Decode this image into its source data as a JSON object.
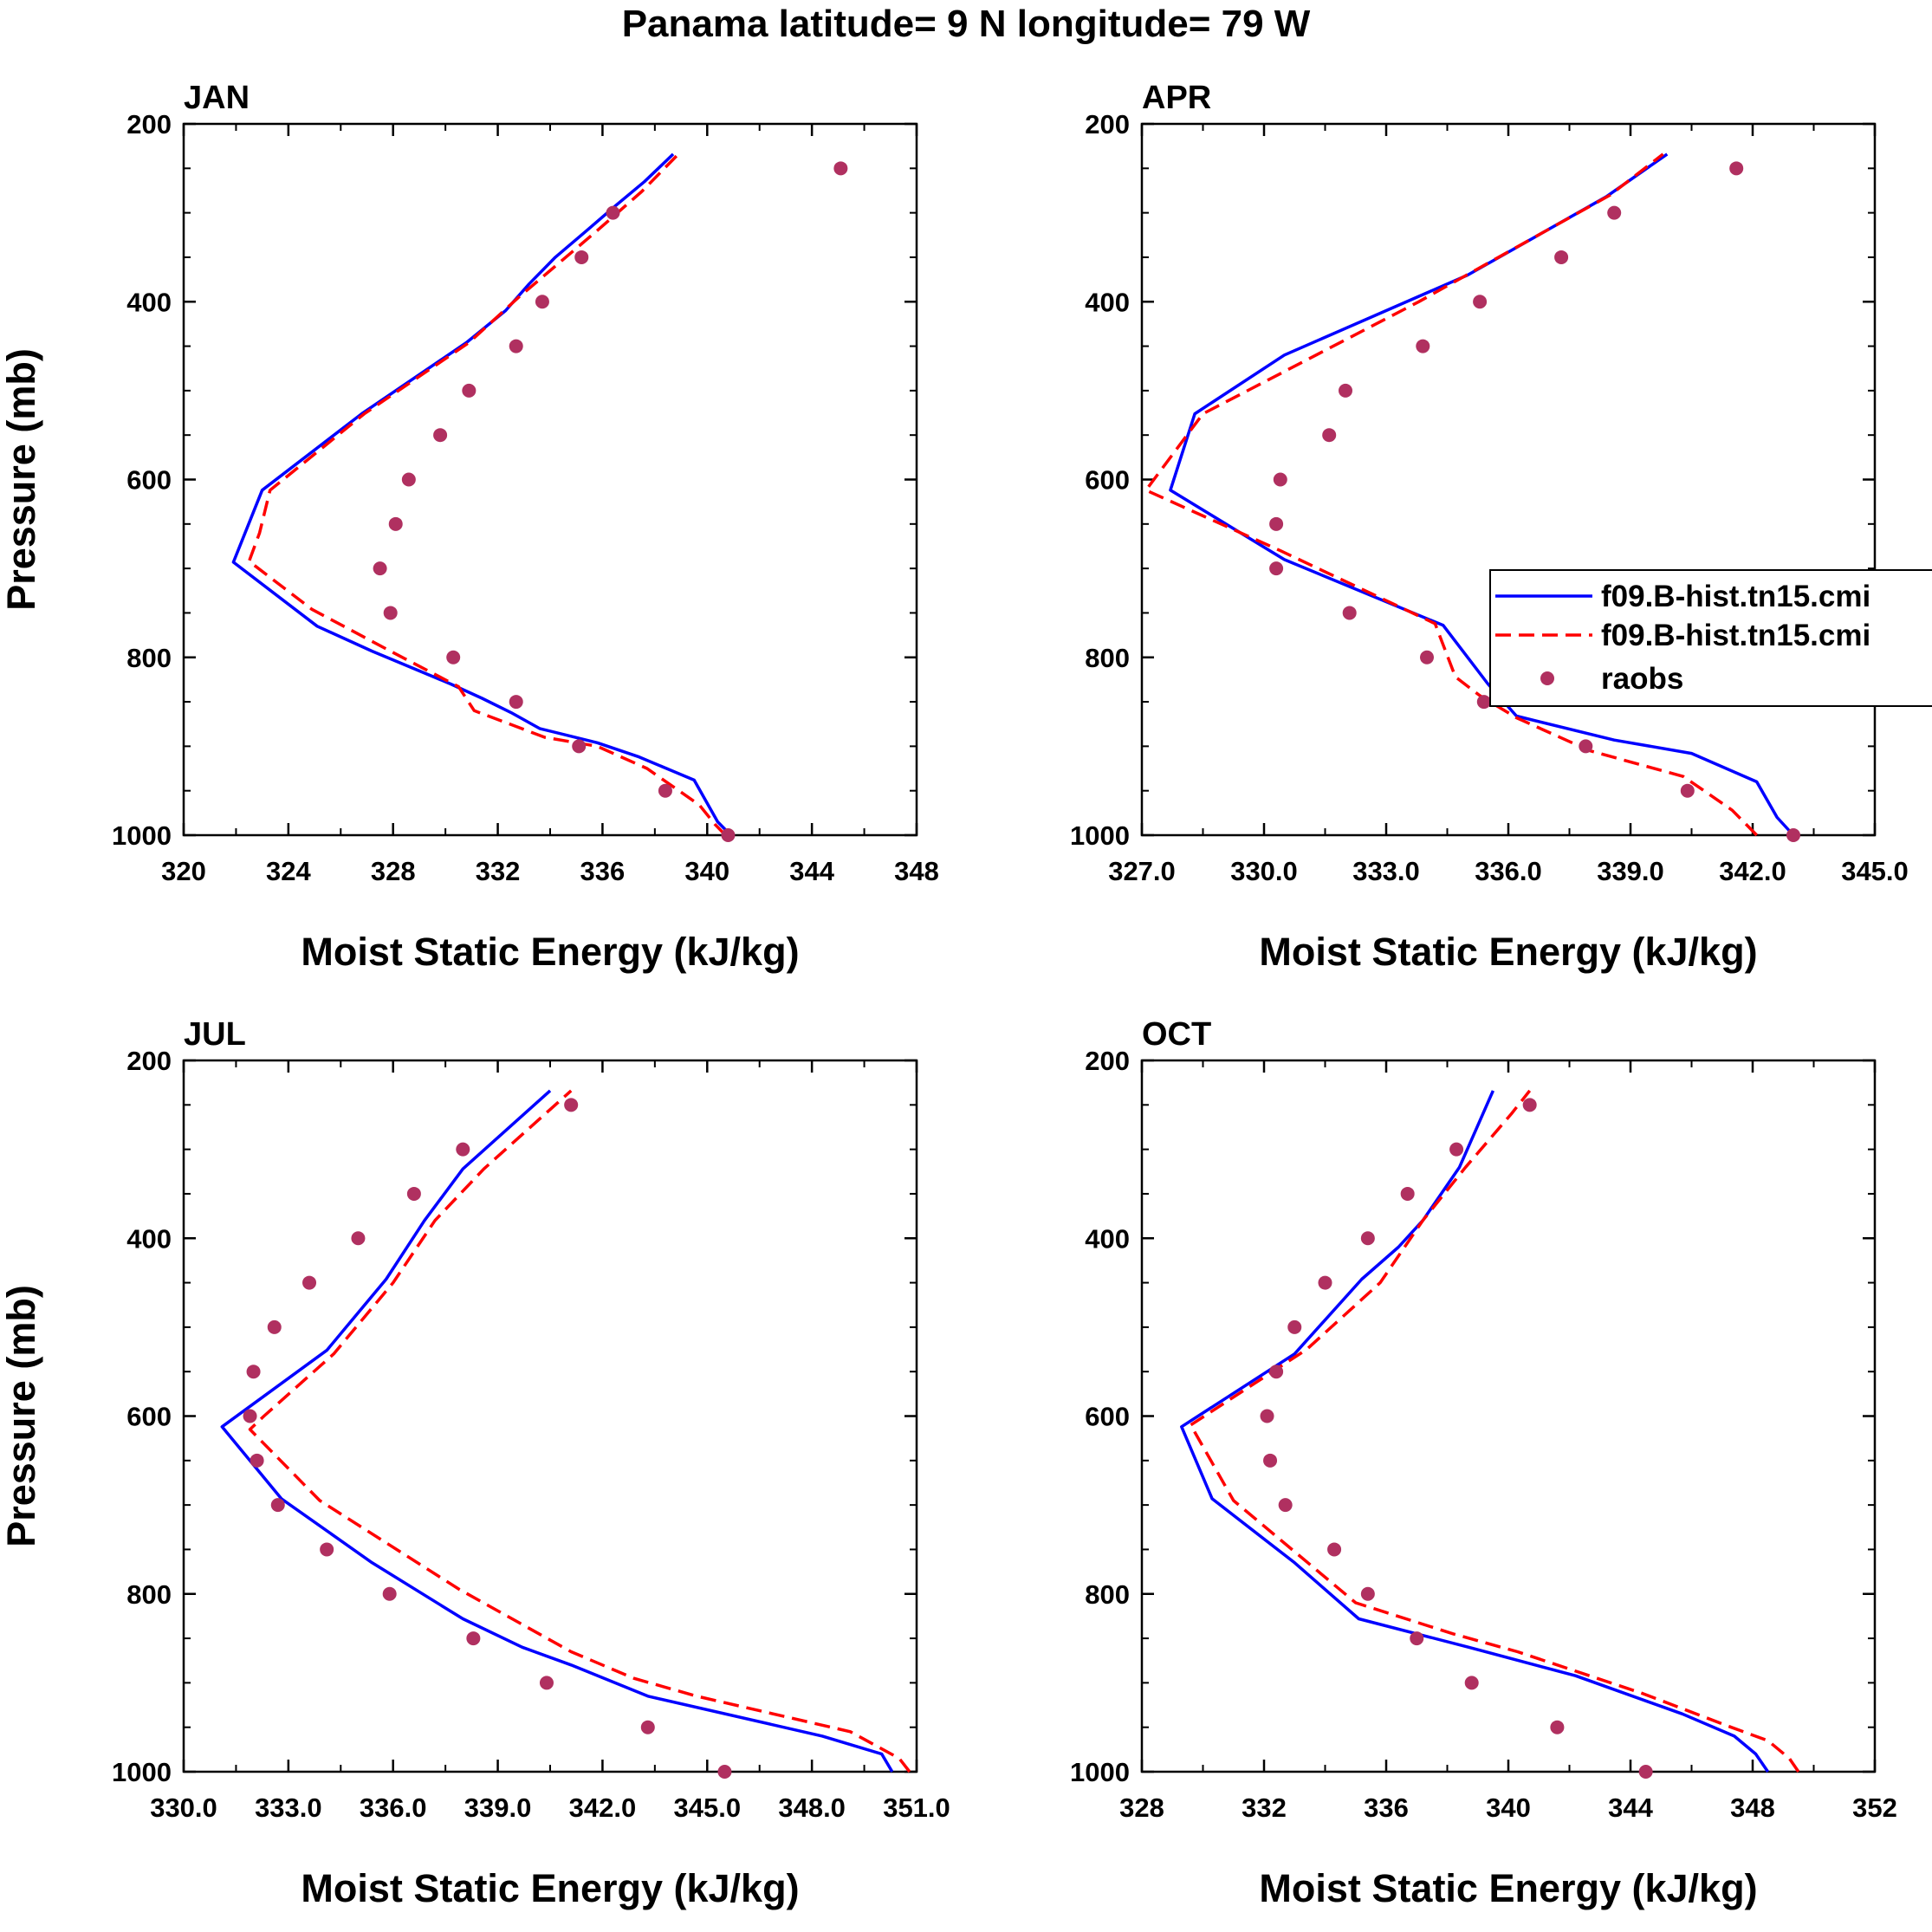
{
  "title": "Panama  latitude= 9 N longitude= 79 W",
  "legend": {
    "entries": [
      {
        "label": "f09.B-hist.tn15.cmi",
        "color": "#0000ff",
        "style": "solid"
      },
      {
        "label": "f09.B-hist.tn15.cmi",
        "color": "#ff0000",
        "style": "dashed"
      },
      {
        "label": "raobs",
        "color": "#b03060",
        "style": "marker"
      }
    ]
  },
  "chart_data": [
    {
      "type": "line",
      "title": "JAN",
      "xlabel": "Moist Static Energy (kJ/kg)",
      "ylabel": "Pressure (mb)",
      "xlim": [
        320,
        348
      ],
      "xticks": [
        320,
        324,
        328,
        332,
        336,
        340,
        344,
        348
      ],
      "xtick_labels": [
        "320",
        "324",
        "328",
        "332",
        "336",
        "340",
        "344",
        "348"
      ],
      "ylim": [
        200,
        1000
      ],
      "yticks": [
        200,
        400,
        600,
        800,
        1000
      ],
      "ytick_labels": [
        "200",
        "400",
        "600",
        "800",
        "1000"
      ],
      "series": [
        {
          "name": "f09.B-hist.tn15.cmi",
          "style": "solid",
          "color": "#0000ff",
          "x": [
            340.9,
            340.4,
            339.5,
            337.4,
            335.8,
            333.6,
            332.5,
            331.4,
            330.2,
            327.2,
            325.1,
            321.9,
            323.0,
            326.8,
            330.8,
            332.3,
            333.2,
            334.2,
            335.4,
            336.5,
            337.6,
            338.7
          ],
          "y": [
            1000,
            985,
            938,
            912,
            896,
            880,
            862,
            846,
            830,
            793,
            765,
            693,
            612,
            526,
            446,
            410,
            380,
            350,
            320,
            292,
            265,
            234
          ]
        },
        {
          "name": "f09.B-hist.tn15.cmi",
          "style": "dashed",
          "color": "#ff0000",
          "x": [
            340.7,
            340.3,
            339.7,
            337.7,
            335.8,
            333.8,
            331.1,
            330.5,
            327.9,
            324.9,
            322.5,
            322.9,
            323.3,
            326.9,
            330.9,
            332.8,
            335.8,
            337.5,
            338.9
          ],
          "y": [
            1000,
            988,
            966,
            925,
            900,
            890,
            860,
            833,
            793,
            746,
            692,
            660,
            612,
            526,
            446,
            395,
            320,
            276,
            234
          ]
        },
        {
          "name": "raobs",
          "style": "marker",
          "color": "#b03060",
          "x": [
            340.8,
            338.4,
            335.1,
            332.7,
            330.3,
            327.9,
            327.5,
            328.1,
            328.6,
            329.8,
            330.9,
            332.7,
            333.7,
            335.2,
            336.4,
            345.1
          ],
          "y": [
            1000,
            950,
            900,
            850,
            800,
            750,
            700,
            650,
            600,
            550,
            500,
            450,
            400,
            350,
            300,
            250
          ]
        }
      ]
    },
    {
      "type": "line",
      "title": "APR",
      "xlabel": "Moist Static Energy (kJ/kg)",
      "ylabel": "",
      "xlim": [
        327,
        345
      ],
      "xticks": [
        327,
        330,
        333,
        336,
        339,
        342,
        345
      ],
      "xtick_labels": [
        "327.0",
        "330.0",
        "333.0",
        "336.0",
        "339.0",
        "342.0",
        "345.0"
      ],
      "ylim": [
        200,
        1000
      ],
      "yticks": [
        200,
        400,
        600,
        800,
        1000
      ],
      "ytick_labels": [
        "200",
        "400",
        "600",
        "800",
        "1000"
      ],
      "series": [
        {
          "name": "f09.B-hist.tn15.cmi",
          "style": "solid",
          "color": "#0000ff",
          "x": [
            343.0,
            342.6,
            342.1,
            340.5,
            338.6,
            336.2,
            335.5,
            334.4,
            330.5,
            327.7,
            328.3,
            330.5,
            335.0,
            338.4,
            339.9
          ],
          "y": [
            1000,
            980,
            940,
            908,
            893,
            866,
            830,
            764,
            690,
            612,
            526,
            460,
            370,
            282,
            234
          ]
        },
        {
          "name": "f09.B-hist.tn15.cmi",
          "style": "dashed",
          "color": "#ff0000",
          "x": [
            342.1,
            341.5,
            340.3,
            338.0,
            336.2,
            335.3,
            334.7,
            334.2,
            330.4,
            327.1,
            328.5,
            333.8,
            338.5,
            339.8
          ],
          "y": [
            1000,
            972,
            934,
            905,
            868,
            843,
            822,
            762,
            680,
            612,
            526,
            400,
            280,
            234
          ]
        },
        {
          "name": "raobs",
          "style": "marker",
          "color": "#b03060",
          "x": [
            343.0,
            340.4,
            337.9,
            335.4,
            334.0,
            332.1,
            330.3,
            330.3,
            330.4,
            331.6,
            332.0,
            333.9,
            335.3,
            337.3,
            338.6,
            341.6
          ],
          "y": [
            1000,
            950,
            900,
            850,
            800,
            750,
            700,
            650,
            600,
            550,
            500,
            450,
            400,
            350,
            300,
            250
          ]
        }
      ]
    },
    {
      "type": "line",
      "title": "JUL",
      "xlabel": "Moist Static Energy (kJ/kg)",
      "ylabel": "Pressure (mb)",
      "xlim": [
        330,
        351
      ],
      "xticks": [
        330,
        333,
        336,
        339,
        342,
        345,
        348,
        351
      ],
      "xtick_labels": [
        "330.0",
        "333.0",
        "336.0",
        "339.0",
        "342.0",
        "345.0",
        "348.0",
        "351.0"
      ],
      "ylim": [
        200,
        1000
      ],
      "yticks": [
        200,
        400,
        600,
        800,
        1000
      ],
      "ytick_labels": [
        "200",
        "400",
        "600",
        "800",
        "1000"
      ],
      "series": [
        {
          "name": "f09.B-hist.tn15.cmi",
          "style": "solid",
          "color": "#0000ff",
          "x": [
            350.3,
            350.0,
            348.3,
            343.3,
            341.1,
            339.7,
            338.0,
            335.4,
            332.8,
            331.1,
            334.1,
            335.8,
            336.9,
            338.0,
            340.5
          ],
          "y": [
            1000,
            980,
            960,
            915,
            880,
            860,
            828,
            765,
            693,
            612,
            526,
            446,
            380,
            322,
            234
          ]
        },
        {
          "name": "f09.B-hist.tn15.cmi",
          "style": "dashed",
          "color": "#ff0000",
          "x": [
            350.8,
            350.5,
            349.1,
            344.7,
            342.9,
            341.1,
            337.9,
            333.9,
            331.9,
            332.3,
            334.3,
            336.0,
            337.2,
            338.6,
            341.1
          ],
          "y": [
            1000,
            985,
            955,
            915,
            895,
            865,
            795,
            695,
            615,
            600,
            530,
            450,
            380,
            322,
            234
          ]
        },
        {
          "name": "raobs",
          "style": "marker",
          "color": "#b03060",
          "x": [
            345.5,
            343.3,
            340.4,
            338.3,
            335.9,
            334.1,
            332.7,
            332.1,
            331.9,
            332.0,
            332.6,
            333.6,
            335.0,
            336.6,
            338.0,
            341.1
          ],
          "y": [
            1000,
            950,
            900,
            850,
            800,
            750,
            700,
            650,
            600,
            550,
            500,
            450,
            400,
            350,
            300,
            250
          ]
        }
      ]
    },
    {
      "type": "line",
      "title": "OCT",
      "xlabel": "Moist Static Energy (kJ/kg)",
      "ylabel": "",
      "xlim": [
        328,
        352
      ],
      "xticks": [
        328,
        332,
        336,
        340,
        344,
        348,
        352
      ],
      "xtick_labels": [
        "328",
        "332",
        "336",
        "340",
        "344",
        "348",
        "352"
      ],
      "ylim": [
        200,
        1000
      ],
      "yticks": [
        200,
        400,
        600,
        800,
        1000
      ],
      "ytick_labels": [
        "200",
        "400",
        "600",
        "800",
        "1000"
      ],
      "series": [
        {
          "name": "f09.B-hist.tn15.cmi",
          "style": "solid",
          "color": "#0000ff",
          "x": [
            348.5,
            348.1,
            347.4,
            345.7,
            342.2,
            338.7,
            335.1,
            333.0,
            330.3,
            329.3,
            333.0,
            335.2,
            336.4,
            337.2,
            338.4,
            339.5
          ],
          "y": [
            1000,
            980,
            960,
            935,
            892,
            860,
            828,
            765,
            693,
            612,
            530,
            446,
            410,
            380,
            320,
            234
          ]
        },
        {
          "name": "f09.B-hist.tn15.cmi",
          "style": "dashed",
          "color": "#ff0000",
          "x": [
            349.5,
            349.2,
            348.5,
            347.3,
            344.4,
            340.3,
            338.2,
            335.0,
            331.0,
            329.6,
            333.4,
            335.8,
            337.2,
            338.6,
            340.1,
            340.7
          ],
          "y": [
            1000,
            985,
            965,
            950,
            912,
            865,
            845,
            810,
            695,
            610,
            525,
            450,
            380,
            320,
            260,
            234
          ]
        },
        {
          "name": "raobs",
          "style": "marker",
          "color": "#b03060",
          "x": [
            344.5,
            341.6,
            338.8,
            337.0,
            335.4,
            334.3,
            332.7,
            332.2,
            332.1,
            332.4,
            333.0,
            334.0,
            335.4,
            336.7,
            338.3,
            340.7
          ],
          "y": [
            1000,
            950,
            900,
            850,
            800,
            750,
            700,
            650,
            600,
            550,
            500,
            450,
            400,
            350,
            300,
            250
          ]
        }
      ]
    }
  ]
}
